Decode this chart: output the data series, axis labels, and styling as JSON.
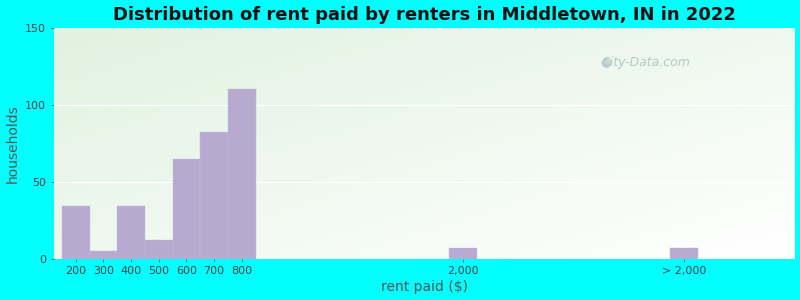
{
  "title": "Distribution of rent paid by renters in Middletown, IN in 2022",
  "xlabel": "rent paid ($)",
  "ylabel": "households",
  "bar_color": "#b8a9d0",
  "bar_edgecolor": "#c8b8e0",
  "background_outer": "#00ffff",
  "ylim": [
    0,
    150
  ],
  "yticks": [
    0,
    50,
    100,
    150
  ],
  "categories": [
    "200",
    "300",
    "400",
    "500",
    "600",
    "700",
    "800",
    "2,000",
    "> 2,000"
  ],
  "values": [
    34,
    5,
    34,
    12,
    65,
    82,
    110,
    7,
    7
  ],
  "x_positions": [
    0,
    1,
    2,
    3,
    4,
    5,
    6,
    14,
    22
  ],
  "bar_width": 1.0,
  "xlim": [
    -0.8,
    26
  ],
  "watermark": "City-Data.com",
  "title_fontsize": 13,
  "axis_label_fontsize": 10,
  "tick_fontsize": 8
}
